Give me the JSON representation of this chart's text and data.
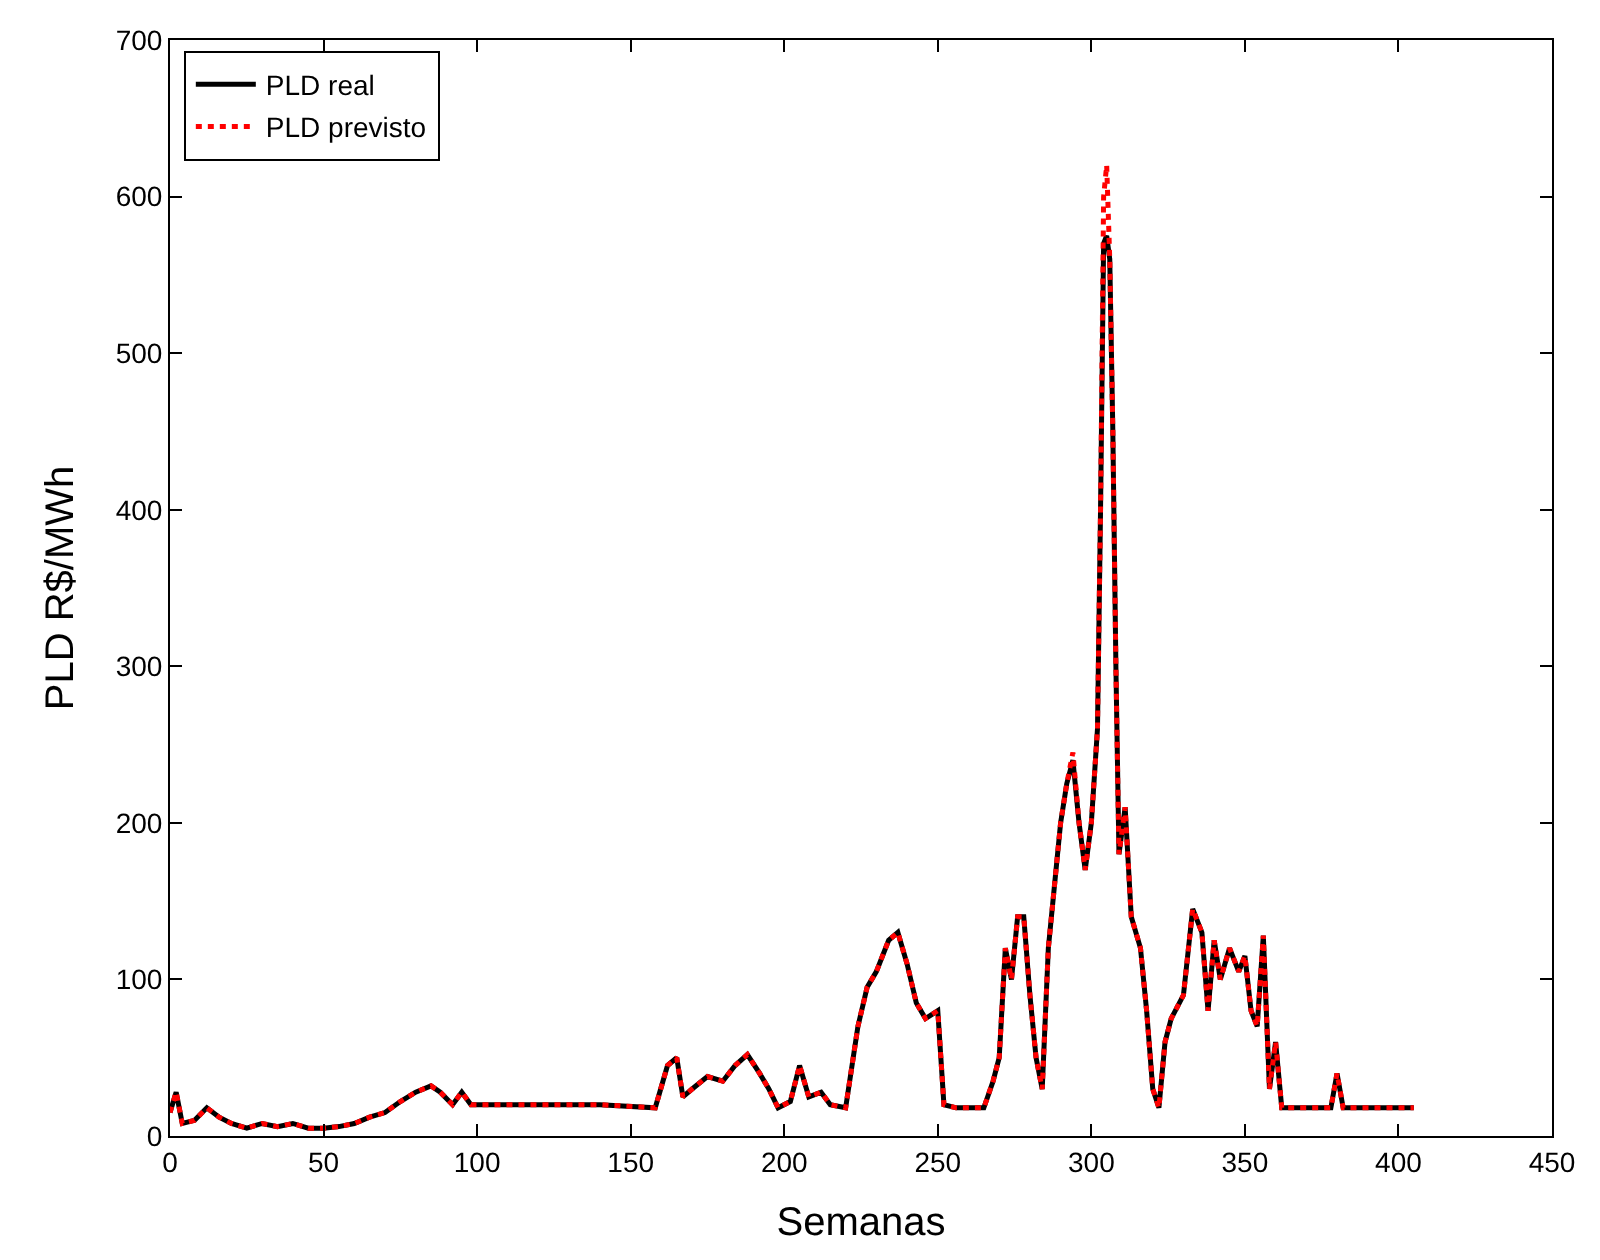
{
  "chart_data": {
    "type": "line",
    "xlabel": "Semanas",
    "ylabel": "PLD R$/MWh",
    "xlim": [
      0,
      450
    ],
    "ylim": [
      0,
      700
    ],
    "xticks": [
      0,
      50,
      100,
      150,
      200,
      250,
      300,
      350,
      400,
      450
    ],
    "yticks": [
      0,
      100,
      200,
      300,
      400,
      500,
      600,
      700
    ],
    "legend": "top left",
    "marker": "none",
    "x": [
      0,
      2,
      4,
      8,
      12,
      16,
      20,
      25,
      30,
      35,
      40,
      45,
      50,
      55,
      60,
      65,
      70,
      75,
      80,
      85,
      88,
      92,
      95,
      98,
      100,
      120,
      140,
      158,
      162,
      165,
      167,
      170,
      175,
      180,
      184,
      188,
      192,
      195,
      198,
      202,
      205,
      208,
      212,
      215,
      220,
      224,
      227,
      230,
      234,
      237,
      240,
      243,
      246,
      250,
      252,
      256,
      265,
      268,
      270,
      272,
      274,
      276,
      278,
      280,
      282,
      284,
      286,
      288,
      290,
      292,
      294,
      296,
      298,
      300,
      302,
      303,
      304,
      305,
      306,
      307,
      308,
      309,
      311,
      313,
      316,
      318,
      320,
      322,
      324,
      326,
      330,
      333,
      336,
      338,
      340,
      342,
      345,
      348,
      350,
      352,
      354,
      356,
      358,
      360,
      362,
      365,
      370,
      378,
      380,
      382,
      390,
      405
    ],
    "series": [
      {
        "name": "PLD real",
        "color": "#000000",
        "line_style": "solid",
        "values": [
          15,
          28,
          8,
          10,
          18,
          12,
          8,
          5,
          8,
          6,
          8,
          5,
          5,
          6,
          8,
          12,
          15,
          22,
          28,
          32,
          28,
          20,
          28,
          20,
          20,
          20,
          20,
          18,
          45,
          50,
          25,
          30,
          38,
          35,
          45,
          52,
          40,
          30,
          18,
          22,
          45,
          25,
          28,
          20,
          18,
          70,
          95,
          105,
          125,
          130,
          110,
          85,
          75,
          80,
          20,
          18,
          18,
          35,
          50,
          120,
          100,
          140,
          140,
          90,
          50,
          30,
          120,
          160,
          200,
          225,
          240,
          200,
          170,
          200,
          260,
          400,
          570,
          575,
          560,
          450,
          300,
          180,
          210,
          140,
          120,
          80,
          30,
          18,
          60,
          75,
          90,
          145,
          130,
          80,
          125,
          100,
          120,
          105,
          115,
          80,
          70,
          128,
          30,
          60,
          18,
          18,
          18,
          18,
          40,
          18,
          18,
          18
        ]
      },
      {
        "name": "PLD previsto",
        "color": "#ff0000",
        "line_style": "dotted",
        "values": [
          15,
          28,
          8,
          10,
          18,
          12,
          8,
          5,
          8,
          6,
          8,
          5,
          5,
          6,
          8,
          12,
          15,
          22,
          28,
          32,
          28,
          20,
          28,
          20,
          20,
          20,
          20,
          18,
          45,
          50,
          25,
          30,
          38,
          35,
          45,
          52,
          40,
          30,
          18,
          22,
          45,
          25,
          28,
          20,
          18,
          70,
          95,
          105,
          125,
          130,
          110,
          85,
          75,
          80,
          20,
          18,
          18,
          35,
          50,
          120,
          100,
          140,
          140,
          90,
          50,
          30,
          120,
          160,
          200,
          225,
          245,
          200,
          170,
          200,
          260,
          400,
          600,
          620,
          560,
          450,
          300,
          180,
          210,
          140,
          120,
          80,
          30,
          18,
          60,
          75,
          90,
          145,
          130,
          80,
          125,
          100,
          120,
          105,
          115,
          80,
          70,
          128,
          30,
          60,
          18,
          18,
          18,
          18,
          40,
          18,
          18,
          18
        ]
      }
    ]
  }
}
